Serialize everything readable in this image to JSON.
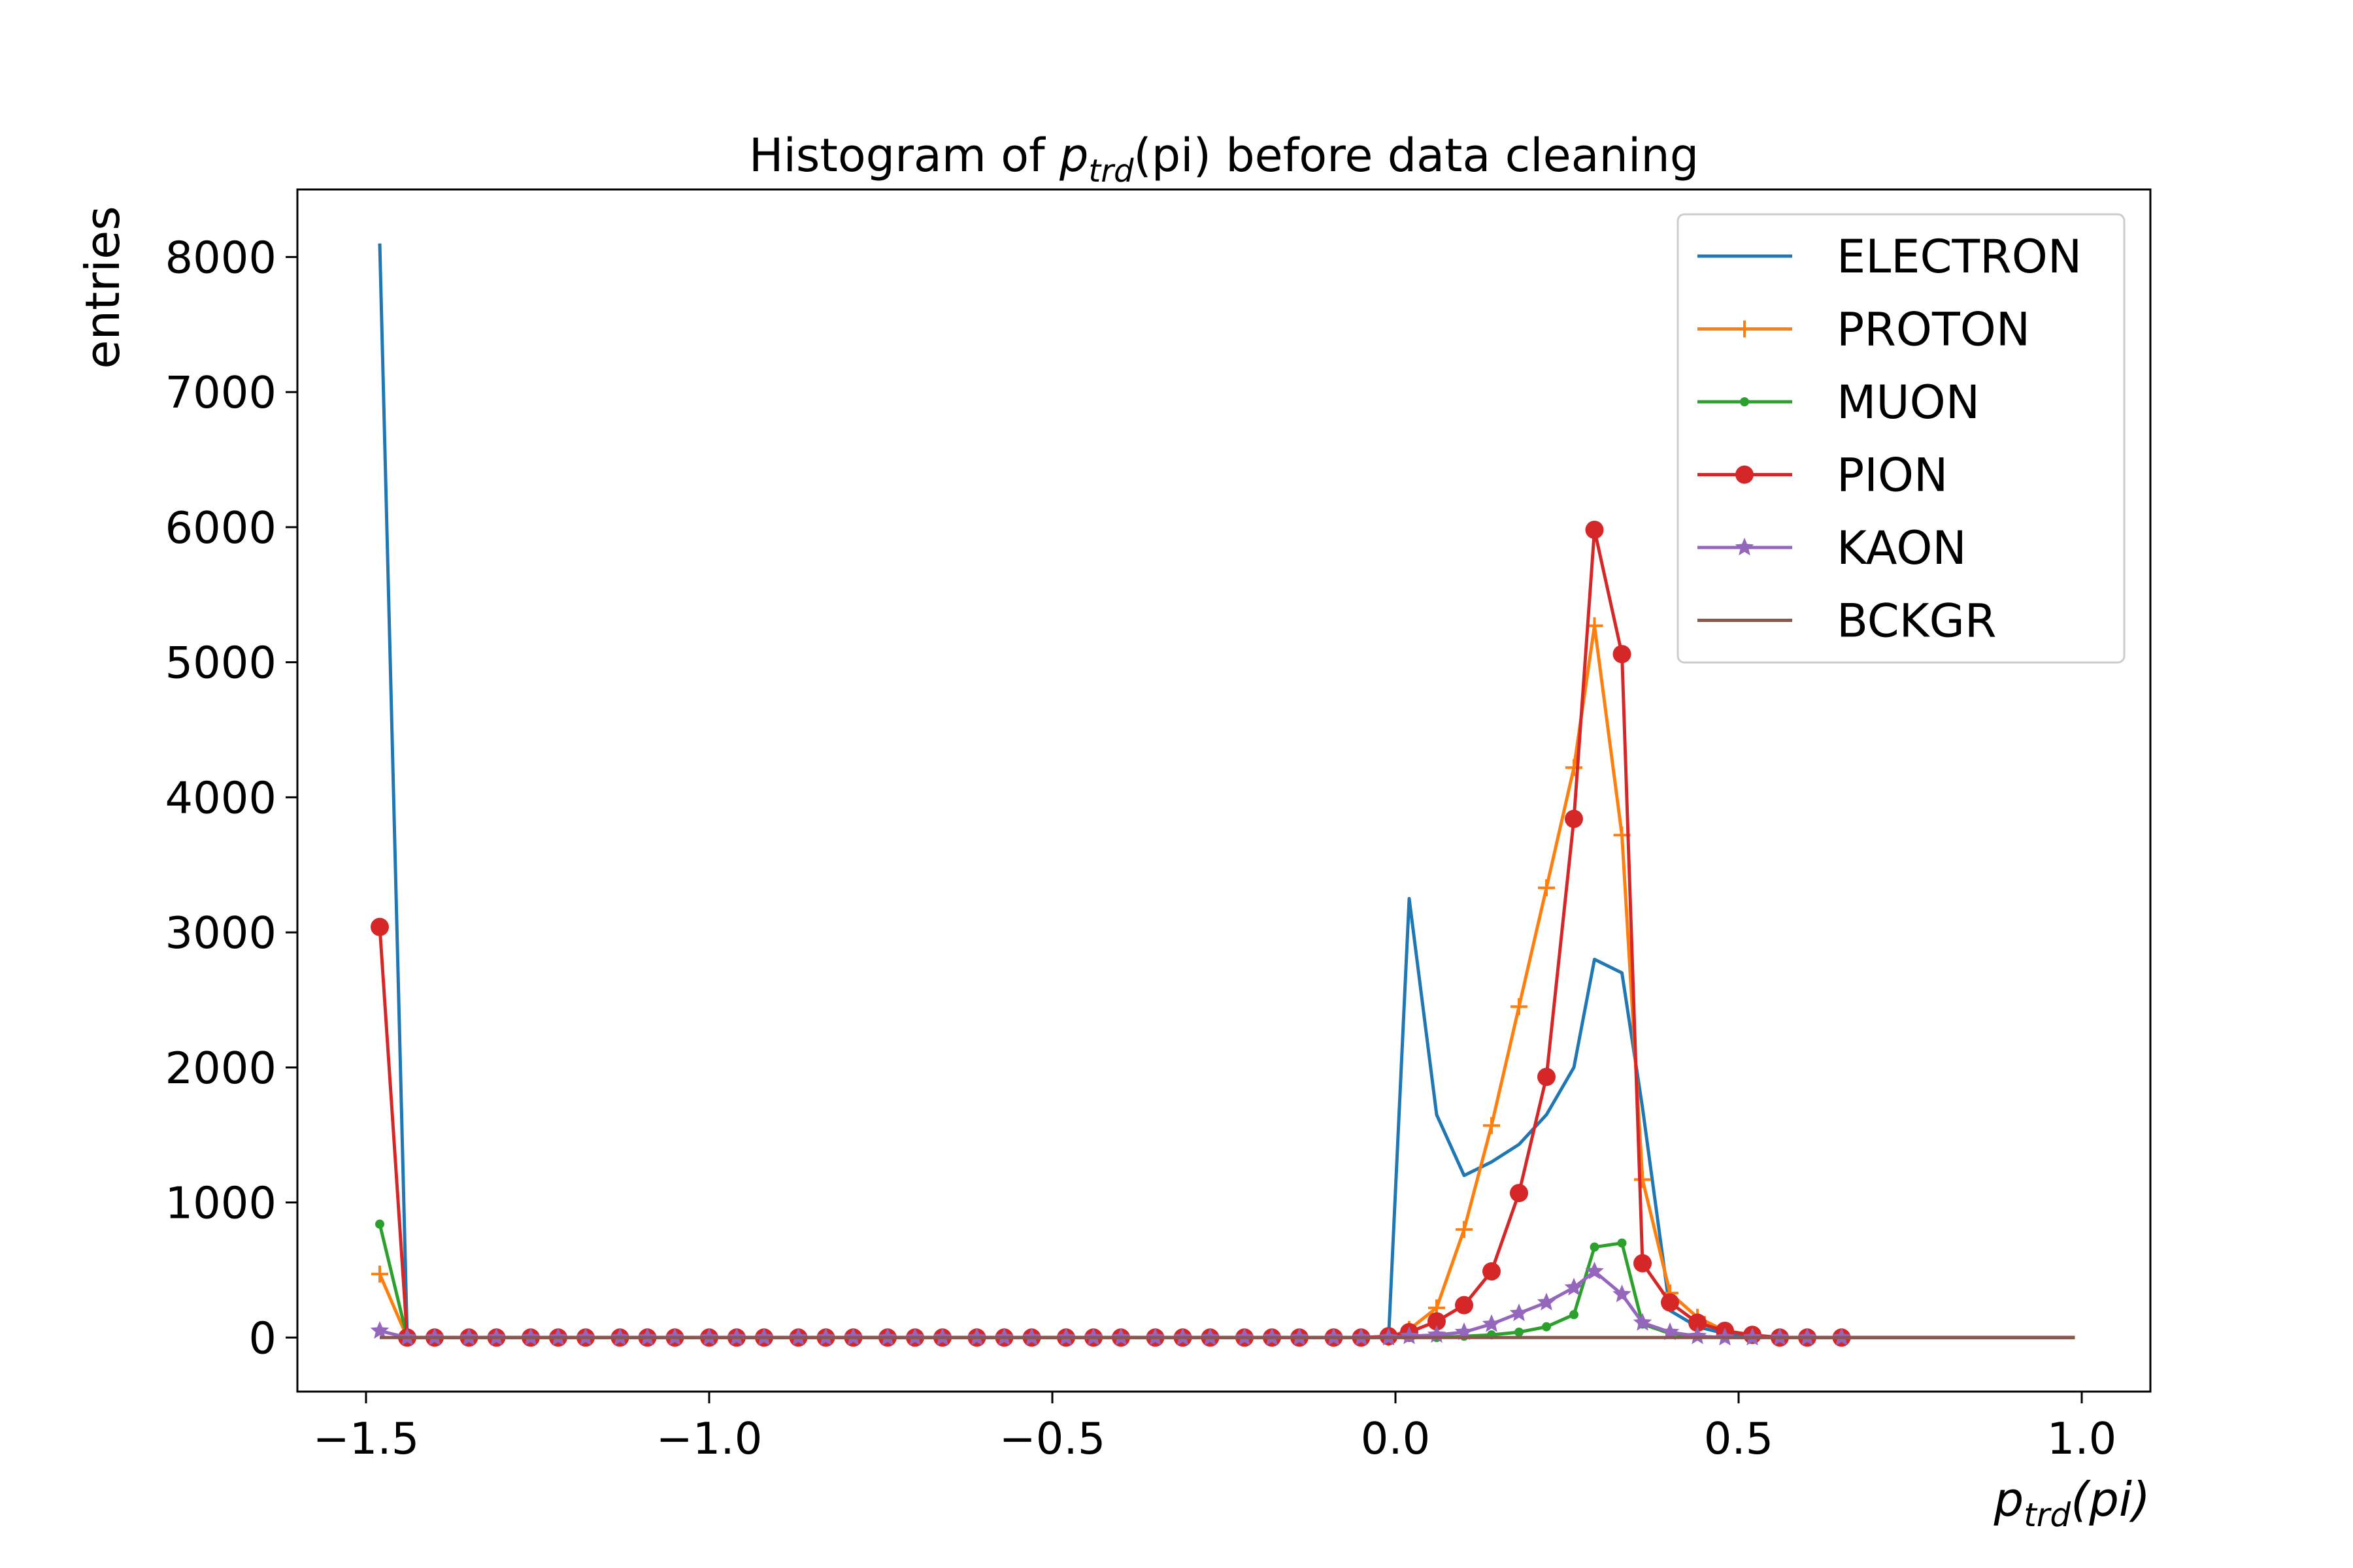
{
  "chart_data": {
    "type": "line",
    "title": {
      "prefix": "Histogram of ",
      "var_base": "p",
      "var_sub": "trd",
      "var_arg": "(pi)",
      "suffix": " before data cleaning"
    },
    "xlabel": {
      "var_base": "p",
      "var_sub": "trd",
      "var_arg": "(pi)"
    },
    "ylabel": "entries",
    "xlim": [
      -1.6,
      1.1
    ],
    "ylim": [
      -400,
      8500
    ],
    "x_ticks": [
      -1.5,
      -1.0,
      -0.5,
      0.0,
      0.5,
      1.0
    ],
    "x_tick_labels": [
      "−1.5",
      "−1.0",
      "−0.5",
      "0.0",
      "0.5",
      "1.0"
    ],
    "y_ticks": [
      0,
      1000,
      2000,
      3000,
      4000,
      5000,
      6000,
      7000,
      8000
    ],
    "y_tick_labels": [
      "0",
      "1000",
      "2000",
      "3000",
      "4000",
      "5000",
      "6000",
      "7000",
      "8000"
    ],
    "grid": false,
    "legend_position": "top-right",
    "x": [
      -1.48,
      -1.44,
      -1.4,
      -1.35,
      -1.31,
      -1.26,
      -1.22,
      -1.18,
      -1.13,
      -1.09,
      -1.05,
      -1.0,
      -0.96,
      -0.92,
      -0.87,
      -0.83,
      -0.79,
      -0.74,
      -0.7,
      -0.66,
      -0.61,
      -0.57,
      -0.53,
      -0.48,
      -0.44,
      -0.4,
      -0.35,
      -0.31,
      -0.27,
      -0.22,
      -0.18,
      -0.14,
      -0.09,
      -0.05,
      -0.01,
      0.02,
      0.06,
      0.1,
      0.14,
      0.18,
      0.22,
      0.26,
      0.29,
      0.33,
      0.36,
      0.4,
      0.44,
      0.48,
      0.52,
      0.56,
      0.6,
      0.65,
      0.7,
      0.75,
      0.8,
      0.85,
      0.9,
      0.95,
      0.99
    ],
    "series": [
      {
        "name": "ELECTRON",
        "color": "#1f77b4",
        "marker": "none",
        "values": [
          8100,
          0,
          0,
          0,
          0,
          0,
          0,
          0,
          0,
          0,
          0,
          0,
          0,
          0,
          0,
          0,
          0,
          0,
          0,
          0,
          0,
          0,
          0,
          0,
          0,
          0,
          0,
          0,
          0,
          0,
          0,
          0,
          0,
          0,
          0,
          3250,
          1650,
          1200,
          1300,
          1430,
          1650,
          2000,
          2800,
          2700,
          1700,
          200,
          80,
          30,
          10,
          0,
          0,
          0,
          0,
          0,
          0,
          0,
          0,
          0,
          0
        ]
      },
      {
        "name": "PROTON",
        "color": "#ff7f0e",
        "marker": "plus",
        "values": [
          470,
          0,
          0,
          0,
          0,
          0,
          0,
          0,
          0,
          0,
          0,
          0,
          0,
          0,
          0,
          0,
          0,
          0,
          0,
          0,
          0,
          0,
          0,
          0,
          0,
          0,
          0,
          0,
          0,
          0,
          0,
          0,
          0,
          0,
          0,
          60,
          220,
          800,
          1570,
          2450,
          3330,
          4220,
          5270,
          3720,
          1170,
          330,
          150,
          50,
          20,
          0,
          0,
          0,
          0,
          0,
          0,
          0,
          0,
          0,
          0
        ]
      },
      {
        "name": "MUON",
        "color": "#2ca02c",
        "marker": "dot",
        "values": [
          840,
          0,
          0,
          0,
          0,
          0,
          0,
          0,
          0,
          0,
          0,
          0,
          0,
          0,
          0,
          0,
          0,
          0,
          0,
          0,
          0,
          0,
          0,
          0,
          0,
          0,
          0,
          0,
          0,
          0,
          0,
          0,
          0,
          0,
          0,
          0,
          0,
          10,
          20,
          40,
          80,
          170,
          670,
          700,
          100,
          30,
          10,
          0,
          0,
          0,
          0,
          0,
          0,
          0,
          0,
          0,
          0,
          0,
          0
        ]
      },
      {
        "name": "PION",
        "color": "#d62728",
        "marker": "circle",
        "values": [
          3040,
          0,
          0,
          0,
          0,
          0,
          0,
          0,
          0,
          0,
          0,
          0,
          0,
          0,
          0,
          0,
          0,
          0,
          0,
          0,
          0,
          0,
          0,
          0,
          0,
          0,
          0,
          0,
          0,
          0,
          0,
          0,
          0,
          0,
          10,
          40,
          120,
          240,
          490,
          1070,
          1930,
          3840,
          5980,
          5060,
          550,
          260,
          110,
          50,
          20,
          0,
          0,
          0,
          0,
          0,
          0,
          0,
          0,
          0,
          0
        ]
      },
      {
        "name": "KAON",
        "color": "#9467bd",
        "marker": "star",
        "values": [
          50,
          0,
          0,
          0,
          0,
          0,
          0,
          0,
          0,
          0,
          0,
          0,
          0,
          0,
          0,
          0,
          0,
          0,
          0,
          0,
          0,
          0,
          0,
          0,
          0,
          0,
          0,
          0,
          0,
          0,
          0,
          0,
          0,
          0,
          0,
          10,
          20,
          40,
          100,
          180,
          260,
          370,
          490,
          320,
          110,
          40,
          10,
          0,
          0,
          0,
          0,
          0,
          0,
          0,
          0,
          0,
          0,
          0,
          0
        ]
      },
      {
        "name": "BCKGR",
        "color": "#8c564b",
        "marker": "none",
        "values": [
          0,
          0,
          0,
          0,
          0,
          0,
          0,
          0,
          0,
          0,
          0,
          0,
          0,
          0,
          0,
          0,
          0,
          0,
          0,
          0,
          0,
          0,
          0,
          0,
          0,
          0,
          0,
          0,
          0,
          0,
          0,
          0,
          0,
          0,
          0,
          0,
          0,
          0,
          0,
          0,
          0,
          0,
          0,
          0,
          0,
          0,
          0,
          0,
          0,
          0,
          0,
          0,
          0,
          0,
          0,
          0,
          0,
          0,
          0
        ]
      }
    ]
  }
}
